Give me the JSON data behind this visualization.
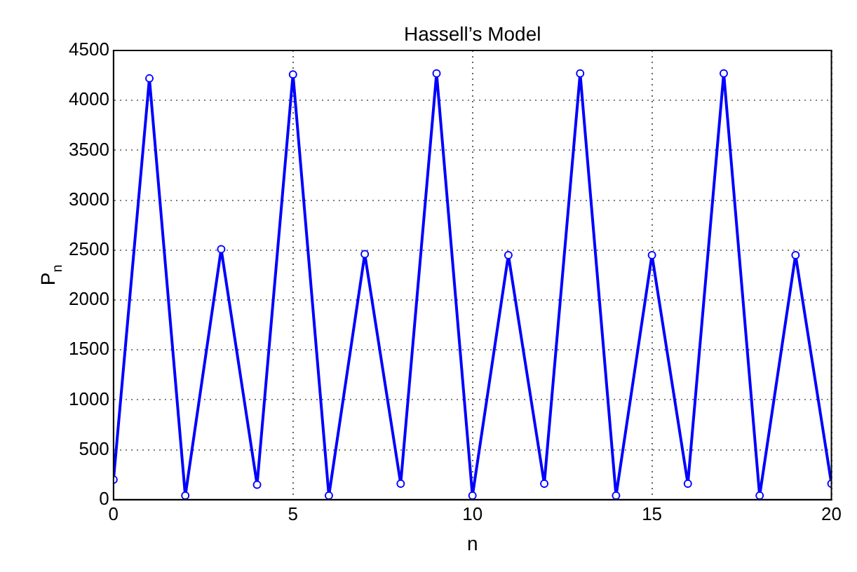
{
  "chart_data": {
    "type": "line",
    "title": "Hassell’s Model",
    "xlabel": "n",
    "ylabel": "P$_{n}$",
    "x": [
      0,
      1,
      2,
      3,
      4,
      5,
      6,
      7,
      8,
      9,
      10,
      11,
      12,
      13,
      14,
      15,
      16,
      17,
      18,
      19,
      20
    ],
    "series": [
      {
        "color": "#0000ff",
        "values": [
          200,
          4220,
          40,
          2510,
          150,
          4260,
          40,
          2460,
          160,
          4270,
          40,
          2450,
          160,
          4270,
          40,
          2450,
          160,
          4270,
          40,
          2450,
          160
        ]
      }
    ],
    "xlim": [
      0,
      20
    ],
    "xticks": [
      0,
      5,
      10,
      15,
      20
    ],
    "ylim": [
      0,
      4500
    ],
    "yticks": [
      0,
      500,
      1000,
      1500,
      2000,
      2500,
      3000,
      3500,
      4000,
      4500
    ],
    "grid": true,
    "marker": "circle",
    "line_style": "solid",
    "legend": false
  }
}
